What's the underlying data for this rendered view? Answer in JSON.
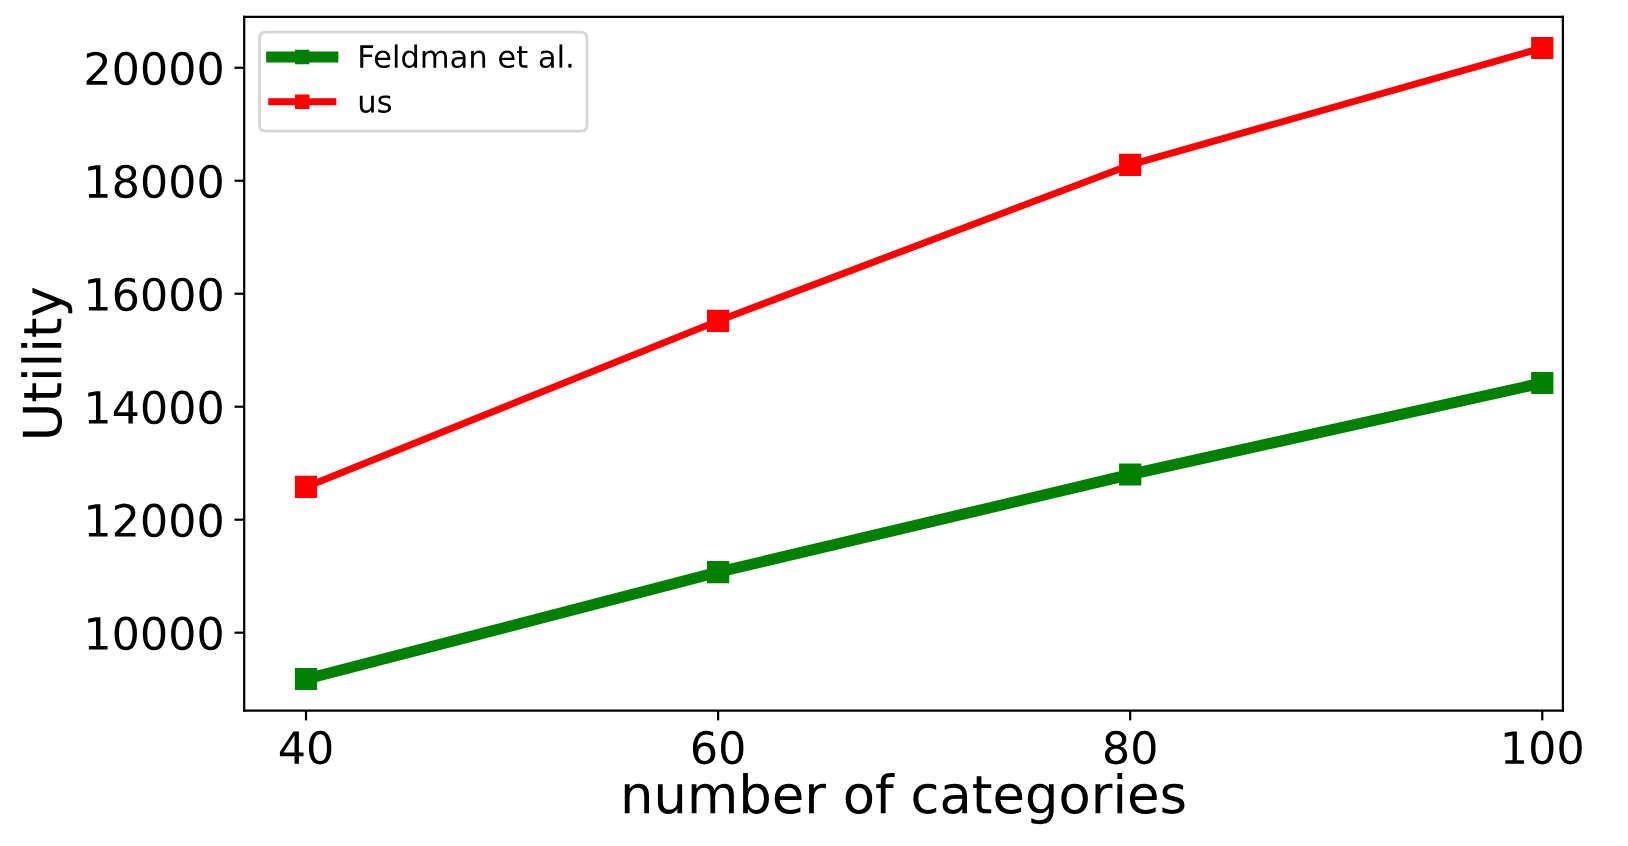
{
  "chart_data": {
    "type": "line",
    "xlabel": "number of categories",
    "ylabel": "Utility",
    "x": [
      40,
      60,
      80,
      100
    ],
    "series": [
      {
        "name": "Feldman et al.",
        "color": "#008000",
        "values": [
          9180,
          11070,
          12800,
          14420
        ]
      },
      {
        "name": "us",
        "color": "#ff0000",
        "values": [
          12580,
          15520,
          18280,
          20350
        ]
      }
    ],
    "xlim": [
      37,
      101
    ],
    "xticks": [
      40,
      60,
      80,
      100
    ],
    "ylim": [
      8620,
      20900
    ],
    "yticks": [
      10000,
      12000,
      14000,
      16000,
      18000,
      20000
    ],
    "marker": "square",
    "legend": "top left",
    "grid": false
  }
}
